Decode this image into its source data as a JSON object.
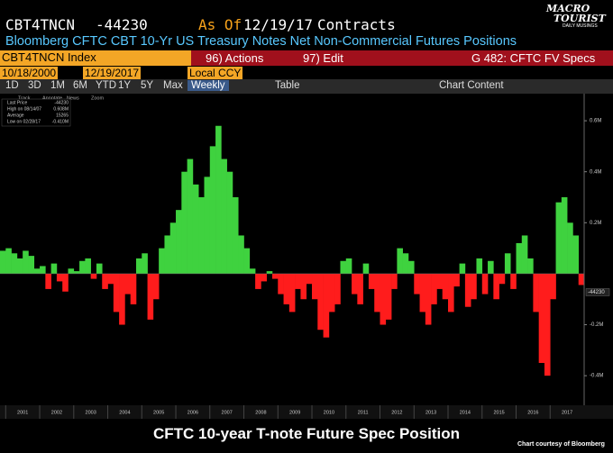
{
  "header": {
    "ticker": "CBT4TNCN",
    "value": "-44230",
    "as_of_label": "As Of",
    "date": "12/19/17",
    "units": "Contracts",
    "description": "Bloomberg CFTC CBT 10-Yr US Treasury Notes Net Non-Commercial Futures Positions"
  },
  "logo": {
    "line1": "MACRO",
    "line2": "TOURIST",
    "tagline": "DAILY MUSINGS"
  },
  "toolbar": {
    "security": "CBT4TNCN Index",
    "actions": "96) Actions",
    "edit": "97) Edit",
    "page": "G 482: CFTC FV Specs"
  },
  "range": {
    "start": "10/18/2000",
    "end": "12/19/2017",
    "currency": "Local CCY"
  },
  "tabs": {
    "periods": [
      "1D",
      "3D",
      "1M",
      "6M",
      "YTD",
      "1Y",
      "5Y",
      "Max"
    ],
    "frequency": "Weekly",
    "table": "Table",
    "content": "Chart Content"
  },
  "chart_tools": [
    "Track",
    "Annotate",
    "News",
    "Zoom"
  ],
  "legend": [
    [
      "Last Price",
      "-44230"
    ],
    [
      "High on 08/14/07",
      "0.608M"
    ],
    [
      "Average",
      "15265"
    ],
    [
      "Low on 02/28/17",
      "-0.410M"
    ]
  ],
  "chart_data": {
    "type": "bar",
    "categories": [
      null,
      "2001",
      null,
      null,
      null,
      null,
      null,
      "2002",
      null,
      null,
      null,
      null,
      null,
      "2003",
      null,
      null,
      null,
      null,
      null,
      "2004",
      null,
      null,
      null,
      null,
      null,
      "2005",
      null,
      null,
      null,
      null,
      null,
      "2006",
      null,
      null,
      null,
      null,
      null,
      "2007",
      null,
      null,
      null,
      null,
      null,
      "2008",
      null,
      null,
      null,
      null,
      null,
      "2009",
      null,
      null,
      null,
      null,
      null,
      "2010",
      null,
      null,
      null,
      null,
      null,
      "2011",
      null,
      null,
      null,
      null,
      null,
      "2012",
      null,
      null,
      null,
      null,
      null,
      "2013",
      null,
      null,
      null,
      null,
      null,
      "2014",
      null,
      null,
      null,
      null,
      null,
      "2015",
      null,
      null,
      null,
      null,
      null,
      "2016",
      null,
      null,
      null,
      null,
      null,
      "2017",
      null,
      null,
      null,
      null,
      null
    ],
    "values": [
      90000,
      100000,
      80000,
      60000,
      90000,
      70000,
      20000,
      30000,
      -60000,
      40000,
      -30000,
      -70000,
      20000,
      10000,
      50000,
      60000,
      -20000,
      40000,
      -60000,
      -40000,
      -150000,
      -200000,
      -80000,
      -120000,
      60000,
      80000,
      -180000,
      -100000,
      100000,
      150000,
      200000,
      250000,
      400000,
      450000,
      350000,
      300000,
      380000,
      500000,
      580000,
      450000,
      400000,
      300000,
      150000,
      100000,
      20000,
      -60000,
      -30000,
      10000,
      -20000,
      -80000,
      -120000,
      -150000,
      -60000,
      -100000,
      -40000,
      -100000,
      -220000,
      -250000,
      -150000,
      -120000,
      50000,
      60000,
      -80000,
      -120000,
      40000,
      -60000,
      -150000,
      -200000,
      -180000,
      -60000,
      100000,
      80000,
      50000,
      -80000,
      -150000,
      -200000,
      -120000,
      -60000,
      -100000,
      -150000,
      -50000,
      40000,
      -130000,
      -100000,
      60000,
      -80000,
      50000,
      -100000,
      -40000,
      80000,
      -60000,
      120000,
      150000,
      60000,
      -150000,
      -350000,
      -400000,
      -100000,
      280000,
      300000,
      200000,
      150000,
      -44230
    ],
    "color": "#3fd23f",
    "negative_color": "#ff1c1c",
    "ylim": [
      -516000,
      678000
    ],
    "yticks": [
      {
        "value": 600000,
        "label": "0.6M"
      },
      {
        "value": 400000,
        "label": "0.4M"
      },
      {
        "value": 200000,
        "label": "0.2M"
      },
      {
        "value": -200000,
        "label": "-0.2M"
      },
      {
        "value": -400000,
        "label": "-0.4M"
      }
    ],
    "last_label": "-44230"
  },
  "footer": {
    "title": "CFTC 10-year T-note Future Spec Position",
    "credit": "Chart courtesy of Bloomberg"
  }
}
